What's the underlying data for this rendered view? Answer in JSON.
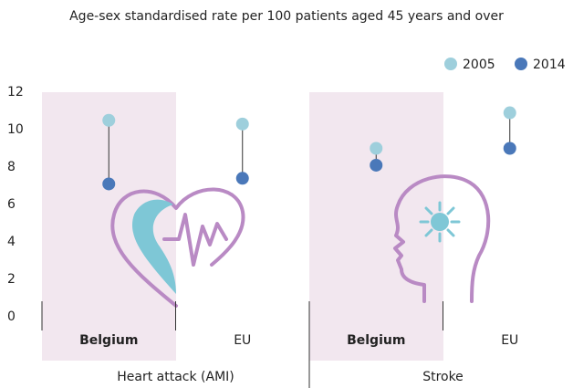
{
  "chart_data": {
    "type": "dot",
    "title": "Age-sex standardised rate per 100 patients aged 45 years and over",
    "categories": [
      "Belgium",
      "EU",
      "Belgium",
      "EU"
    ],
    "groups": [
      "Heart attack (AMI)",
      "Stroke"
    ],
    "series": [
      {
        "name": "2005",
        "color": "#9ecfdc",
        "values": [
          10.5,
          10.3,
          9.0,
          10.9
        ]
      },
      {
        "name": "2014",
        "color": "#4a78b9",
        "values": [
          7.1,
          7.4,
          8.1,
          9.0
        ]
      }
    ],
    "ylim": [
      0,
      12
    ],
    "yticks": [
      0,
      2,
      4,
      6,
      8,
      10,
      12
    ],
    "grid": false,
    "legend": "top-right"
  }
}
